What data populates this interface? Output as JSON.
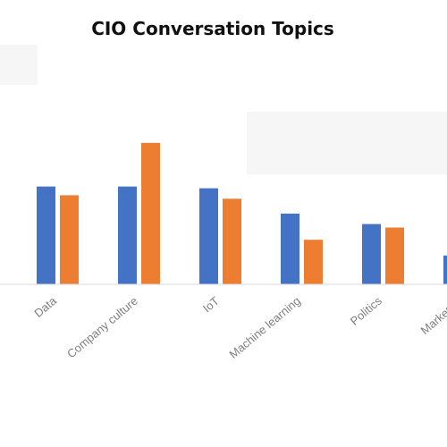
{
  "title": "CIO Conversation Topics",
  "chart_data": {
    "type": "bar",
    "title": "CIO Conversation Topics",
    "categories": [
      "Data",
      "Company culture",
      "IoT",
      "Machine learning",
      "Politics",
      "Marketing"
    ],
    "series": [
      {
        "color": "#4472C4",
        "values": [
          112,
          112,
          110,
          81,
          69,
          33
        ]
      },
      {
        "color": "#ED7D31",
        "values": [
          102,
          162,
          98,
          51,
          65,
          null
        ]
      }
    ],
    "ylim": [
      0,
      170
    ],
    "grid": false,
    "legend": "none",
    "xlabel": "",
    "ylabel": ""
  }
}
